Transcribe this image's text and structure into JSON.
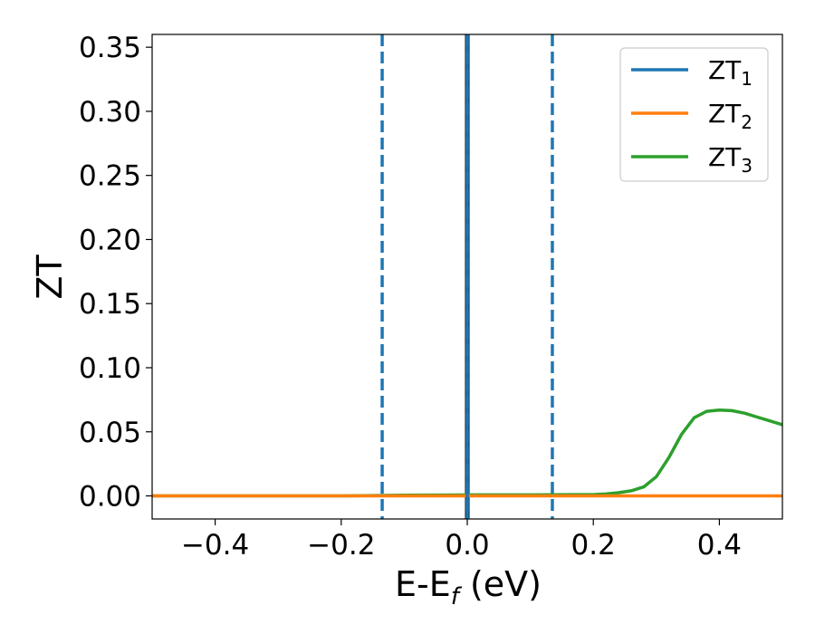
{
  "chart_data": {
    "type": "line",
    "xlabel": {
      "main": "E-E",
      "sub": "f",
      "rest": " (eV)"
    },
    "ylabel": "ZT",
    "xlim": [
      -0.5,
      0.5
    ],
    "ylim": [
      -0.018,
      0.36
    ],
    "xticks": [
      -0.4,
      -0.2,
      0.0,
      0.2,
      0.4
    ],
    "xtick_labels": [
      "−0.4",
      "−0.2",
      "0.0",
      "0.2",
      "0.4"
    ],
    "yticks": [
      0.0,
      0.05,
      0.1,
      0.15,
      0.2,
      0.25,
      0.3,
      0.35
    ],
    "ytick_labels": [
      "0.00",
      "0.05",
      "0.10",
      "0.15",
      "0.20",
      "0.25",
      "0.30",
      "0.35"
    ],
    "grid": false,
    "legend_position": "top-right",
    "vertical_lines": [
      {
        "x": -0.135,
        "style": "dashed",
        "color": "#1f77b4"
      },
      {
        "x": 0.0,
        "style": "solid",
        "color": "#000000"
      },
      {
        "x": 0.0,
        "style": "dashed",
        "color": "#1f77b4"
      },
      {
        "x": 0.135,
        "style": "dashed",
        "color": "#1f77b4"
      }
    ],
    "series": [
      {
        "name": "ZT",
        "name_sub": "1",
        "color": "#1f77b4",
        "x": [
          0.0,
          0.0
        ],
        "y": [
          -0.018,
          0.36
        ]
      },
      {
        "name": "ZT",
        "name_sub": "2",
        "color": "#ff7f0e",
        "x": [
          -0.5,
          -0.4,
          -0.3,
          -0.2,
          -0.1,
          0.0,
          0.1,
          0.2,
          0.3,
          0.4,
          0.5
        ],
        "y": [
          0.0,
          0.0,
          0.0,
          0.0,
          0.0,
          0.0,
          0.0,
          0.0,
          0.0,
          0.0,
          0.0
        ]
      },
      {
        "name": "ZT",
        "name_sub": "3",
        "color": "#2ca02c",
        "x": [
          -0.5,
          -0.4,
          -0.3,
          -0.2,
          -0.1,
          0.0,
          0.1,
          0.2,
          0.22,
          0.24,
          0.26,
          0.28,
          0.3,
          0.32,
          0.34,
          0.36,
          0.38,
          0.4,
          0.42,
          0.44,
          0.46,
          0.48,
          0.5
        ],
        "y": [
          0.0,
          0.0,
          0.0,
          0.0,
          0.0005,
          0.0008,
          0.0008,
          0.001,
          0.0015,
          0.0025,
          0.004,
          0.007,
          0.015,
          0.03,
          0.048,
          0.061,
          0.066,
          0.067,
          0.0665,
          0.0645,
          0.0615,
          0.0585,
          0.0555
        ]
      }
    ]
  }
}
